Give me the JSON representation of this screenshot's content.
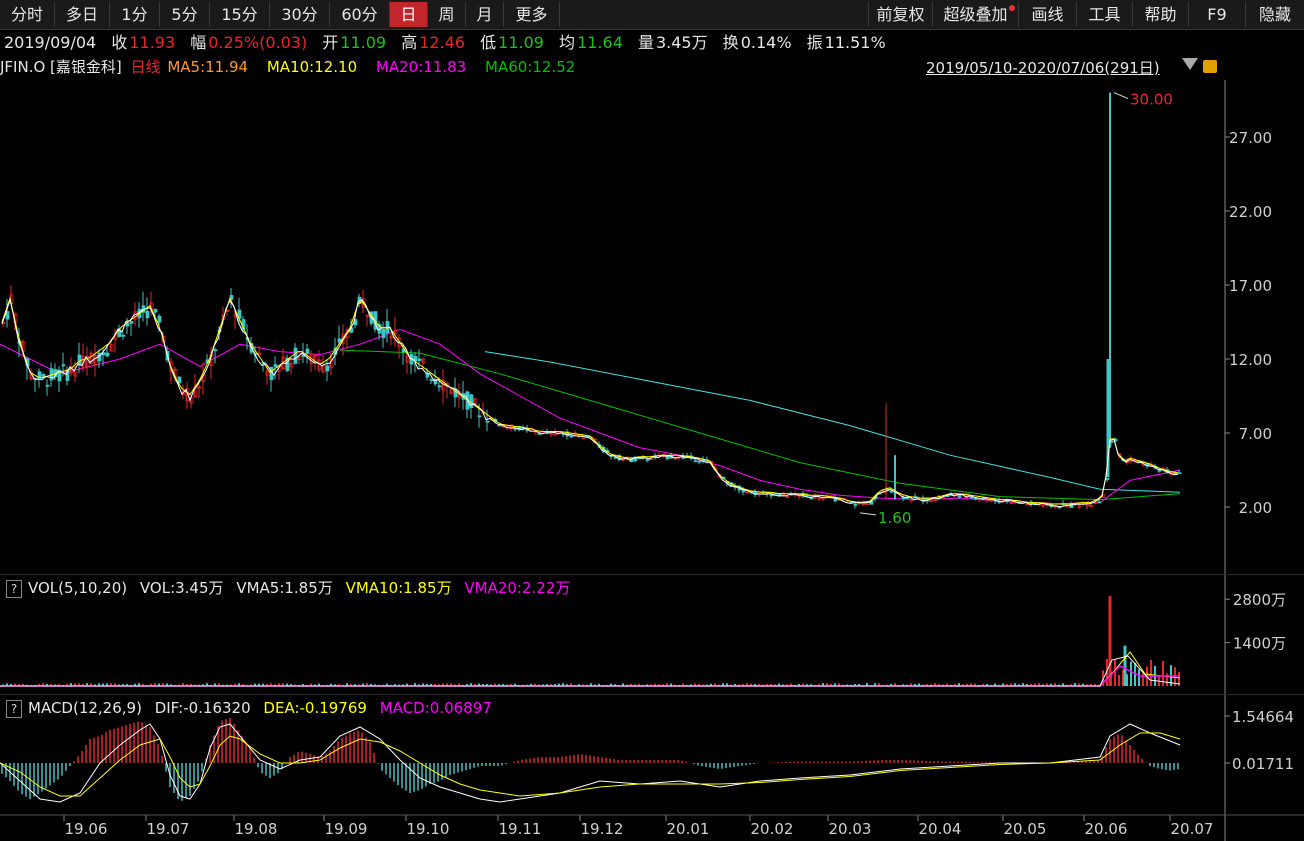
{
  "toolbar": {
    "periods": [
      "分时",
      "多日",
      "1分",
      "5分",
      "15分",
      "30分",
      "60分",
      "日",
      "周",
      "月",
      "更多"
    ],
    "active": "日",
    "right_items": [
      "前复权",
      "超级叠加",
      "画线",
      "工具",
      "帮助",
      "F9",
      "隐藏"
    ]
  },
  "quote": {
    "date": "2019/09/04",
    "close_label": "收",
    "close": "11.93",
    "change_label": "幅",
    "change": "0.25%(0.03)",
    "open_label": "开",
    "open": "11.09",
    "high_label": "高",
    "high": "12.46",
    "low_label": "低",
    "low": "11.09",
    "avg_label": "均",
    "avg": "11.64",
    "vol_label": "量",
    "vol": "3.45万",
    "turnover_label": "换",
    "turnover": "0.14%",
    "amp_label": "振",
    "amp": "11.51%"
  },
  "ma_bar": {
    "symbol": "JFIN.O [嘉银金科]",
    "period": "日线",
    "ma5": "MA5:11.94",
    "ma10": "MA10:12.10",
    "ma20": "MA20:11.83",
    "ma60": "MA60:12.52",
    "range": "2019/05/10-2020/07/06(291日)"
  },
  "colors": {
    "up": "#e8262a",
    "down": "#3fc6c6",
    "ma5": "#ffffff",
    "ma10": "#ffff00",
    "ma20": "#ff00ff",
    "ma60": "#00c000",
    "ma_long": "#40e0e0",
    "axis": "#d0d0d0"
  },
  "vol_panel": {
    "label": "VOL(5,10,20)",
    "vol": "VOL:3.45万",
    "vma5": "VMA5:1.85万",
    "vma10": "VMA10:1.85万",
    "vma20": "VMA20:2.22万",
    "axis": [
      "2800万",
      "1400万"
    ]
  },
  "macd_panel": {
    "label": "MACD(12,26,9)",
    "dif": "DIF:-0.16320",
    "dea": "DEA:-0.19769",
    "macd": "MACD:0.06897",
    "axis": [
      "1.54664",
      "0.01711"
    ]
  },
  "price_axis": [
    "27.00",
    "22.00",
    "17.00",
    "12.00",
    "7.00",
    "2.00"
  ],
  "annotations": {
    "high": "30.00",
    "low": "1.60"
  },
  "x_axis": [
    "19.06",
    "19.07",
    "19.08",
    "19.09",
    "19.10",
    "19.11",
    "19.12",
    "20.01",
    "20.02",
    "20.03",
    "20.04",
    "20.05",
    "20.06",
    "20.07"
  ],
  "chart_data": {
    "type": "candlestick",
    "price_curve": [
      [
        0,
        14
      ],
      [
        10,
        16
      ],
      [
        20,
        13
      ],
      [
        30,
        11
      ],
      [
        40,
        10.6
      ],
      [
        50,
        10.8
      ],
      [
        60,
        11
      ],
      [
        70,
        11.2
      ],
      [
        80,
        11.8
      ],
      [
        90,
        12
      ],
      [
        100,
        12.5
      ],
      [
        110,
        13
      ],
      [
        120,
        14
      ],
      [
        130,
        14.5
      ],
      [
        140,
        15
      ],
      [
        150,
        15.5
      ],
      [
        160,
        14
      ],
      [
        170,
        11.5
      ],
      [
        180,
        10
      ],
      [
        190,
        9.5
      ],
      [
        200,
        10.5
      ],
      [
        210,
        12
      ],
      [
        220,
        14
      ],
      [
        230,
        16
      ],
      [
        240,
        14.5
      ],
      [
        250,
        13
      ],
      [
        260,
        12
      ],
      [
        270,
        11
      ],
      [
        280,
        11.5
      ],
      [
        290,
        12
      ],
      [
        300,
        12.5
      ],
      [
        310,
        12
      ],
      [
        320,
        11.5
      ],
      [
        330,
        12
      ],
      [
        340,
        13
      ],
      [
        350,
        14
      ],
      [
        360,
        16
      ],
      [
        370,
        15
      ],
      [
        380,
        14
      ],
      [
        390,
        14
      ],
      [
        400,
        13
      ],
      [
        410,
        12
      ],
      [
        420,
        11.5
      ],
      [
        430,
        11
      ],
      [
        440,
        10.5
      ],
      [
        450,
        10
      ],
      [
        460,
        9.5
      ],
      [
        470,
        9
      ],
      [
        480,
        8.5
      ],
      [
        490,
        8
      ],
      [
        500,
        7.5
      ],
      [
        510,
        7.4
      ],
      [
        520,
        7.3
      ],
      [
        530,
        7.2
      ],
      [
        540,
        7
      ],
      [
        550,
        7
      ],
      [
        560,
        7
      ],
      [
        570,
        6.9
      ],
      [
        580,
        6.8
      ],
      [
        590,
        6.7
      ],
      [
        600,
        6
      ],
      [
        610,
        5.5
      ],
      [
        620,
        5.3
      ],
      [
        630,
        5.2
      ],
      [
        640,
        5.3
      ],
      [
        650,
        5.3
      ],
      [
        660,
        5.4
      ],
      [
        670,
        5.4
      ],
      [
        680,
        5.4
      ],
      [
        690,
        5.3
      ],
      [
        700,
        5.2
      ],
      [
        710,
        5
      ],
      [
        720,
        4
      ],
      [
        730,
        3.5
      ],
      [
        740,
        3.2
      ],
      [
        750,
        3
      ],
      [
        760,
        2.9
      ],
      [
        770,
        2.9
      ],
      [
        780,
        2.8
      ],
      [
        790,
        2.8
      ],
      [
        800,
        2.8
      ],
      [
        810,
        2.7
      ],
      [
        820,
        2.7
      ],
      [
        830,
        2.6
      ],
      [
        840,
        2.5
      ],
      [
        850,
        2.3
      ],
      [
        860,
        2.2
      ],
      [
        870,
        2.3
      ],
      [
        880,
        3
      ],
      [
        890,
        3.2
      ],
      [
        900,
        2.8
      ],
      [
        910,
        2.6
      ],
      [
        920,
        2.5
      ],
      [
        930,
        2.5
      ],
      [
        940,
        2.6
      ],
      [
        950,
        2.8
      ],
      [
        960,
        2.8
      ],
      [
        970,
        2.7
      ],
      [
        980,
        2.6
      ],
      [
        990,
        2.5
      ],
      [
        1000,
        2.4
      ],
      [
        1010,
        2.4
      ],
      [
        1020,
        2.3
      ],
      [
        1030,
        2.2
      ],
      [
        1040,
        2.2
      ],
      [
        1050,
        2.1
      ],
      [
        1060,
        2.1
      ],
      [
        1070,
        2.1
      ],
      [
        1080,
        2.2
      ],
      [
        1090,
        2.2
      ],
      [
        1100,
        2.5
      ],
      [
        1105,
        3
      ],
      [
        1108,
        6
      ],
      [
        1112,
        7
      ],
      [
        1118,
        5.5
      ],
      [
        1125,
        5
      ],
      [
        1130,
        5.2
      ],
      [
        1140,
        5
      ],
      [
        1150,
        4.8
      ],
      [
        1160,
        4.5
      ],
      [
        1170,
        4.3
      ],
      [
        1180,
        4.2
      ]
    ],
    "ma_long_curve": [
      [
        485,
        12.5
      ],
      [
        550,
        11.8
      ],
      [
        650,
        10.5
      ],
      [
        750,
        9.2
      ],
      [
        850,
        7.5
      ],
      [
        950,
        5.5
      ],
      [
        1050,
        4
      ],
      [
        1100,
        3.2
      ],
      [
        1180,
        3
      ]
    ],
    "ma60_curve": [
      [
        340,
        12.6
      ],
      [
        420,
        12.4
      ],
      [
        500,
        11
      ],
      [
        600,
        9
      ],
      [
        700,
        7
      ],
      [
        800,
        5
      ],
      [
        900,
        3.6
      ],
      [
        1000,
        2.7
      ],
      [
        1100,
        2.5
      ],
      [
        1180,
        2.9
      ]
    ],
    "ma20_curve": [
      [
        0,
        13
      ],
      [
        60,
        11
      ],
      [
        120,
        12
      ],
      [
        160,
        13
      ],
      [
        200,
        11.5
      ],
      [
        240,
        13
      ],
      [
        280,
        12.5
      ],
      [
        320,
        12.3
      ],
      [
        360,
        13
      ],
      [
        400,
        14
      ],
      [
        440,
        13
      ],
      [
        480,
        11
      ],
      [
        520,
        9.5
      ],
      [
        560,
        8
      ],
      [
        600,
        7
      ],
      [
        640,
        6
      ],
      [
        680,
        5.5
      ],
      [
        720,
        4.8
      ],
      [
        760,
        3.8
      ],
      [
        800,
        3.2
      ],
      [
        840,
        2.8
      ],
      [
        880,
        2.6
      ],
      [
        920,
        2.5
      ],
      [
        960,
        2.6
      ],
      [
        1000,
        2.4
      ],
      [
        1050,
        2.2
      ],
      [
        1100,
        2.3
      ],
      [
        1130,
        3.8
      ],
      [
        1180,
        4.5
      ]
    ],
    "price_axis_ticks": [
      27,
      22,
      17,
      12,
      7,
      2
    ],
    "vol_spike": [
      1110,
      2900
    ],
    "vol_bump": [
      1125,
      1300
    ],
    "macd_hist": [
      [
        0,
        -0.3
      ],
      [
        10,
        -0.6
      ],
      [
        20,
        -1
      ],
      [
        30,
        -1.2
      ],
      [
        40,
        -1
      ],
      [
        60,
        -0.5
      ],
      [
        80,
        0.3
      ],
      [
        90,
        0.8
      ],
      [
        100,
        0.9
      ],
      [
        110,
        1.1
      ],
      [
        120,
        1.2
      ],
      [
        130,
        1.3
      ],
      [
        140,
        1.4
      ],
      [
        150,
        1.2
      ],
      [
        160,
        0.5
      ],
      [
        170,
        -0.8
      ],
      [
        180,
        -1.3
      ],
      [
        190,
        -1.1
      ],
      [
        200,
        -0.5
      ],
      [
        210,
        0.6
      ],
      [
        220,
        1.4
      ],
      [
        230,
        1.5
      ],
      [
        240,
        1
      ],
      [
        250,
        0.5
      ],
      [
        260,
        -0.3
      ],
      [
        270,
        -0.5
      ],
      [
        280,
        -0.3
      ],
      [
        290,
        0.2
      ],
      [
        300,
        0.4
      ],
      [
        310,
        0.3
      ],
      [
        320,
        0.2
      ],
      [
        330,
        0.4
      ],
      [
        340,
        0.8
      ],
      [
        350,
        1
      ],
      [
        360,
        1.1
      ],
      [
        370,
        0.7
      ],
      [
        380,
        -0.2
      ],
      [
        390,
        -0.5
      ],
      [
        400,
        -0.8
      ],
      [
        410,
        -1
      ],
      [
        420,
        -0.9
      ],
      [
        430,
        -0.7
      ],
      [
        440,
        -0.6
      ],
      [
        450,
        -0.4
      ],
      [
        460,
        -0.3
      ],
      [
        470,
        -0.2
      ],
      [
        480,
        -0.1
      ],
      [
        500,
        -0.1
      ],
      [
        520,
        0.1
      ],
      [
        540,
        0.2
      ],
      [
        560,
        0.2
      ],
      [
        580,
        0.3
      ],
      [
        600,
        0.2
      ],
      [
        620,
        0.1
      ],
      [
        640,
        0.1
      ],
      [
        660,
        0.1
      ],
      [
        680,
        0.1
      ],
      [
        700,
        -0.1
      ],
      [
        720,
        -0.2
      ],
      [
        740,
        -0.1
      ],
      [
        760,
        0
      ],
      [
        800,
        0.05
      ],
      [
        850,
        0.05
      ],
      [
        880,
        0.1
      ],
      [
        900,
        0.1
      ],
      [
        950,
        0.05
      ],
      [
        1000,
        0.02
      ],
      [
        1050,
        0
      ],
      [
        1100,
        0.1
      ],
      [
        1110,
        0.8
      ],
      [
        1120,
        1
      ],
      [
        1130,
        0.6
      ],
      [
        1140,
        0.2
      ],
      [
        1150,
        -0.1
      ],
      [
        1160,
        -0.2
      ],
      [
        1170,
        -0.25
      ],
      [
        1180,
        -0.2
      ]
    ],
    "dif_curve": [
      [
        0,
        0
      ],
      [
        20,
        -0.6
      ],
      [
        40,
        -1.2
      ],
      [
        60,
        -1.3
      ],
      [
        80,
        -1
      ],
      [
        100,
        0
      ],
      [
        120,
        0.6
      ],
      [
        140,
        1.1
      ],
      [
        150,
        1.3
      ],
      [
        160,
        0.8
      ],
      [
        170,
        -0.4
      ],
      [
        180,
        -1.1
      ],
      [
        190,
        -1.2
      ],
      [
        200,
        -0.7
      ],
      [
        210,
        0.5
      ],
      [
        220,
        1.2
      ],
      [
        230,
        1.3
      ],
      [
        240,
        0.9
      ],
      [
        260,
        0.1
      ],
      [
        280,
        -0.2
      ],
      [
        300,
        0.1
      ],
      [
        320,
        0.2
      ],
      [
        340,
        0.9
      ],
      [
        360,
        1.2
      ],
      [
        380,
        0.8
      ],
      [
        400,
        0.1
      ],
      [
        420,
        -0.5
      ],
      [
        440,
        -0.8
      ],
      [
        460,
        -1
      ],
      [
        480,
        -1.2
      ],
      [
        500,
        -1.3
      ],
      [
        520,
        -1.2
      ],
      [
        560,
        -1
      ],
      [
        600,
        -0.6
      ],
      [
        640,
        -0.7
      ],
      [
        680,
        -0.6
      ],
      [
        720,
        -0.8
      ],
      [
        760,
        -0.6
      ],
      [
        800,
        -0.5
      ],
      [
        850,
        -0.4
      ],
      [
        900,
        -0.2
      ],
      [
        950,
        -0.1
      ],
      [
        1000,
        0
      ],
      [
        1050,
        0
      ],
      [
        1100,
        0.2
      ],
      [
        1110,
        0.9
      ],
      [
        1130,
        1.3
      ],
      [
        1150,
        1
      ],
      [
        1180,
        0.6
      ]
    ],
    "dea_curve": [
      [
        0,
        0
      ],
      [
        20,
        -0.3
      ],
      [
        40,
        -0.8
      ],
      [
        60,
        -1.1
      ],
      [
        80,
        -1.1
      ],
      [
        100,
        -0.5
      ],
      [
        120,
        0.1
      ],
      [
        140,
        0.6
      ],
      [
        160,
        0.8
      ],
      [
        170,
        0.2
      ],
      [
        180,
        -0.5
      ],
      [
        190,
        -0.8
      ],
      [
        200,
        -0.7
      ],
      [
        210,
        -0.1
      ],
      [
        220,
        0.6
      ],
      [
        230,
        0.9
      ],
      [
        240,
        0.8
      ],
      [
        260,
        0.3
      ],
      [
        280,
        0
      ],
      [
        300,
        0
      ],
      [
        320,
        0.1
      ],
      [
        340,
        0.5
      ],
      [
        360,
        0.8
      ],
      [
        380,
        0.7
      ],
      [
        400,
        0.4
      ],
      [
        420,
        0
      ],
      [
        440,
        -0.4
      ],
      [
        460,
        -0.7
      ],
      [
        480,
        -0.9
      ],
      [
        500,
        -1
      ],
      [
        520,
        -1.1
      ],
      [
        560,
        -1
      ],
      [
        600,
        -0.8
      ],
      [
        640,
        -0.7
      ],
      [
        680,
        -0.7
      ],
      [
        720,
        -0.7
      ],
      [
        760,
        -0.65
      ],
      [
        800,
        -0.55
      ],
      [
        850,
        -0.45
      ],
      [
        900,
        -0.25
      ],
      [
        950,
        -0.15
      ],
      [
        1000,
        -0.05
      ],
      [
        1050,
        0
      ],
      [
        1100,
        0.1
      ],
      [
        1120,
        0.6
      ],
      [
        1140,
        1
      ],
      [
        1160,
        1
      ],
      [
        1180,
        0.8
      ]
    ]
  }
}
